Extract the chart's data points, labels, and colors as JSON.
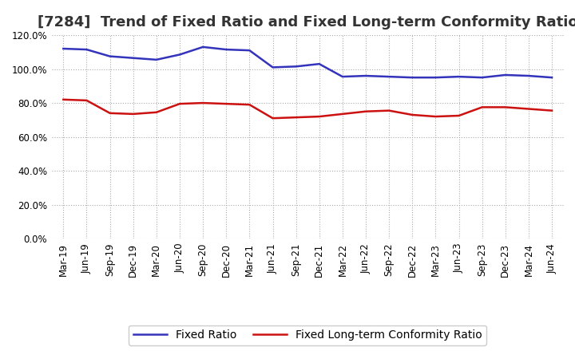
{
  "title": "[7284]  Trend of Fixed Ratio and Fixed Long-term Conformity Ratio",
  "background_color": "#ffffff",
  "grid_color": "#aaaaaa",
  "ylim": [
    0,
    120
  ],
  "yticks": [
    0,
    20,
    40,
    60,
    80,
    100,
    120
  ],
  "ytick_labels": [
    "0.0%",
    "20.0%",
    "40.0%",
    "60.0%",
    "80.0%",
    "100.0%",
    "120.0%"
  ],
  "x_labels": [
    "Mar-19",
    "Jun-19",
    "Sep-19",
    "Dec-19",
    "Mar-20",
    "Jun-20",
    "Sep-20",
    "Dec-20",
    "Mar-21",
    "Jun-21",
    "Sep-21",
    "Dec-21",
    "Mar-22",
    "Jun-22",
    "Sep-22",
    "Dec-22",
    "Mar-23",
    "Jun-23",
    "Sep-23",
    "Dec-23",
    "Mar-24",
    "Jun-24"
  ],
  "fixed_ratio": [
    112.0,
    111.5,
    107.5,
    106.5,
    105.5,
    108.5,
    113.0,
    111.5,
    111.0,
    101.0,
    101.5,
    103.0,
    95.5,
    96.0,
    95.5,
    95.0,
    95.0,
    95.5,
    95.0,
    96.5,
    96.0,
    95.0
  ],
  "fixed_lt_ratio": [
    82.0,
    81.5,
    74.0,
    73.5,
    74.5,
    79.5,
    80.0,
    79.5,
    79.0,
    71.0,
    71.5,
    72.0,
    73.5,
    75.0,
    75.5,
    73.0,
    72.0,
    72.5,
    77.5,
    77.5,
    76.5,
    75.5
  ],
  "blue_color": "#3333bb",
  "red_color": "#cc1111",
  "line_width": 1.8,
  "legend_labels": [
    "Fixed Ratio",
    "Fixed Long-term Conformity Ratio"
  ],
  "title_fontsize": 13,
  "tick_fontsize": 8.5,
  "legend_fontsize": 10
}
